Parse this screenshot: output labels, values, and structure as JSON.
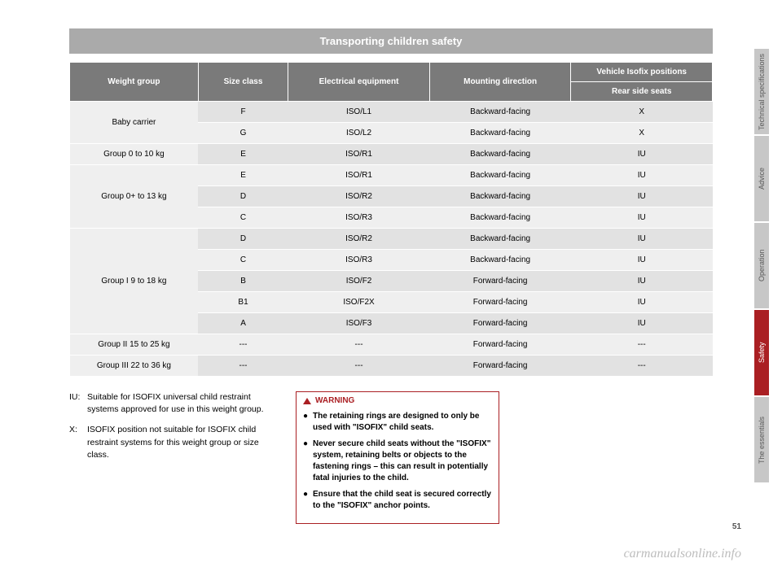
{
  "chapter_title": "Transporting children safety",
  "table": {
    "headers": {
      "weight": "Weight group",
      "size": "Size class",
      "equip": "Electrical equipment",
      "dir": "Mounting direction",
      "positions": "Vehicle Isofix positions",
      "rear": "Rear side seats"
    },
    "rows": [
      {
        "group": "Baby carrier",
        "span": 2,
        "size": "F",
        "equip": "ISO/L1",
        "dir": "Backward-facing",
        "rear": "X",
        "shade": "a"
      },
      {
        "group": "",
        "span": 0,
        "size": "G",
        "equip": "ISO/L2",
        "dir": "Backward-facing",
        "rear": "X",
        "shade": "b"
      },
      {
        "group": "Group 0 to 10 kg",
        "span": 1,
        "size": "E",
        "equip": "ISO/R1",
        "dir": "Backward-facing",
        "rear": "IU",
        "shade": "a"
      },
      {
        "group": "Group 0+ to 13 kg",
        "span": 3,
        "size": "E",
        "equip": "ISO/R1",
        "dir": "Backward-facing",
        "rear": "IU",
        "shade": "b"
      },
      {
        "group": "",
        "span": 0,
        "size": "D",
        "equip": "ISO/R2",
        "dir": "Backward-facing",
        "rear": "IU",
        "shade": "a"
      },
      {
        "group": "",
        "span": 0,
        "size": "C",
        "equip": "ISO/R3",
        "dir": "Backward-facing",
        "rear": "IU",
        "shade": "b"
      },
      {
        "group": "Group I 9 to 18 kg",
        "span": 5,
        "size": "D",
        "equip": "ISO/R2",
        "dir": "Backward-facing",
        "rear": "IU",
        "shade": "a"
      },
      {
        "group": "",
        "span": 0,
        "size": "C",
        "equip": "ISO/R3",
        "dir": "Backward-facing",
        "rear": "IU",
        "shade": "b"
      },
      {
        "group": "",
        "span": 0,
        "size": "B",
        "equip": "ISO/F2",
        "dir": "Forward-facing",
        "rear": "IU",
        "shade": "a"
      },
      {
        "group": "",
        "span": 0,
        "size": "B1",
        "equip": "ISO/F2X",
        "dir": "Forward-facing",
        "rear": "IU",
        "shade": "b"
      },
      {
        "group": "",
        "span": 0,
        "size": "A",
        "equip": "ISO/F3",
        "dir": "Forward-facing",
        "rear": "IU",
        "shade": "a"
      },
      {
        "group": "Group II 15 to 25 kg",
        "span": 1,
        "size": "---",
        "equip": "---",
        "dir": "Forward-facing",
        "rear": "---",
        "shade": "b"
      },
      {
        "group": "Group III 22 to 36 kg",
        "span": 1,
        "size": "---",
        "equip": "---",
        "dir": "Forward-facing",
        "rear": "---",
        "shade": "a"
      }
    ],
    "col_widths": [
      "20%",
      "14%",
      "22%",
      "22%",
      "22%"
    ]
  },
  "definitions": [
    {
      "tag": "IU:",
      "text": "Suitable for ISOFIX universal child restraint systems approved for use in this weight group."
    },
    {
      "tag": "X:",
      "text": "ISOFIX position not suitable for ISOFIX child restraint systems for this weight group or size class."
    }
  ],
  "warning": {
    "title": "WARNING",
    "bullets": [
      "The retaining rings are designed to only be used with \"ISOFIX\" child seats.",
      "Never secure child seats without the \"ISOFIX\" system, retaining belts or objects to the fastening rings – this can result in potentially fatal injuries to the child.",
      "Ensure that the child seat is secured correctly to the \"ISOFIX\" anchor points."
    ]
  },
  "tabs": [
    {
      "label": "Technical specifications",
      "h": 105,
      "cls": "grey"
    },
    {
      "label": "Advice",
      "h": 105,
      "cls": "grey"
    },
    {
      "label": "Operation",
      "h": 105,
      "cls": "grey"
    },
    {
      "label": "Safety",
      "h": 105,
      "cls": "red"
    },
    {
      "label": "The essentials",
      "h": 105,
      "cls": "grey"
    }
  ],
  "page_number": "51",
  "watermark": "carmanualsonline.info"
}
